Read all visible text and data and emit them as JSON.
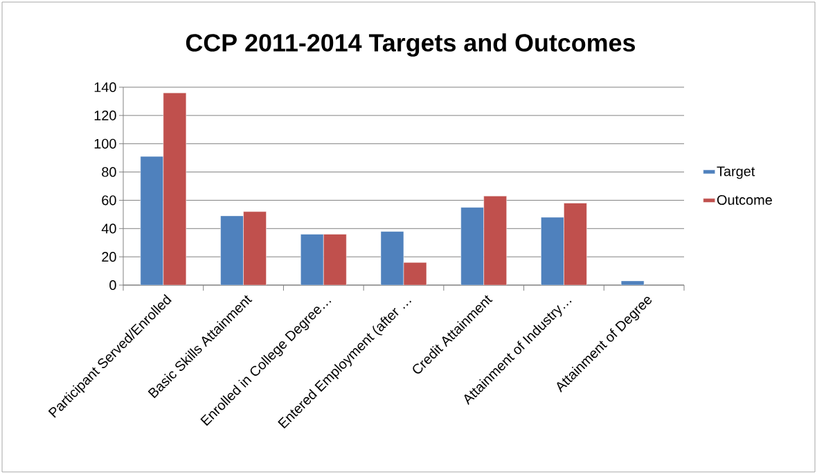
{
  "chart_data": {
    "type": "bar",
    "title": "CCP 2011-2014 Targets and Outcomes",
    "categories": [
      "Participant Served/Enrolled",
      "Basic Skills Attainment",
      "Enrolled in College Degree…",
      "Entered Employment (after …",
      "Credit Attainment",
      "Attainment of Industry…",
      "Attainment of Degree"
    ],
    "series": [
      {
        "name": "Target",
        "color": "#4f81bd",
        "values": [
          91,
          49,
          36,
          38,
          55,
          48,
          3
        ]
      },
      {
        "name": "Outcome",
        "color": "#c0504d",
        "values": [
          136,
          52,
          36,
          16,
          63,
          58,
          null
        ]
      }
    ],
    "ylim": [
      0,
      140
    ],
    "yticks": [
      0,
      20,
      40,
      60,
      80,
      100,
      120,
      140
    ],
    "grid": "y",
    "legend": "right"
  }
}
